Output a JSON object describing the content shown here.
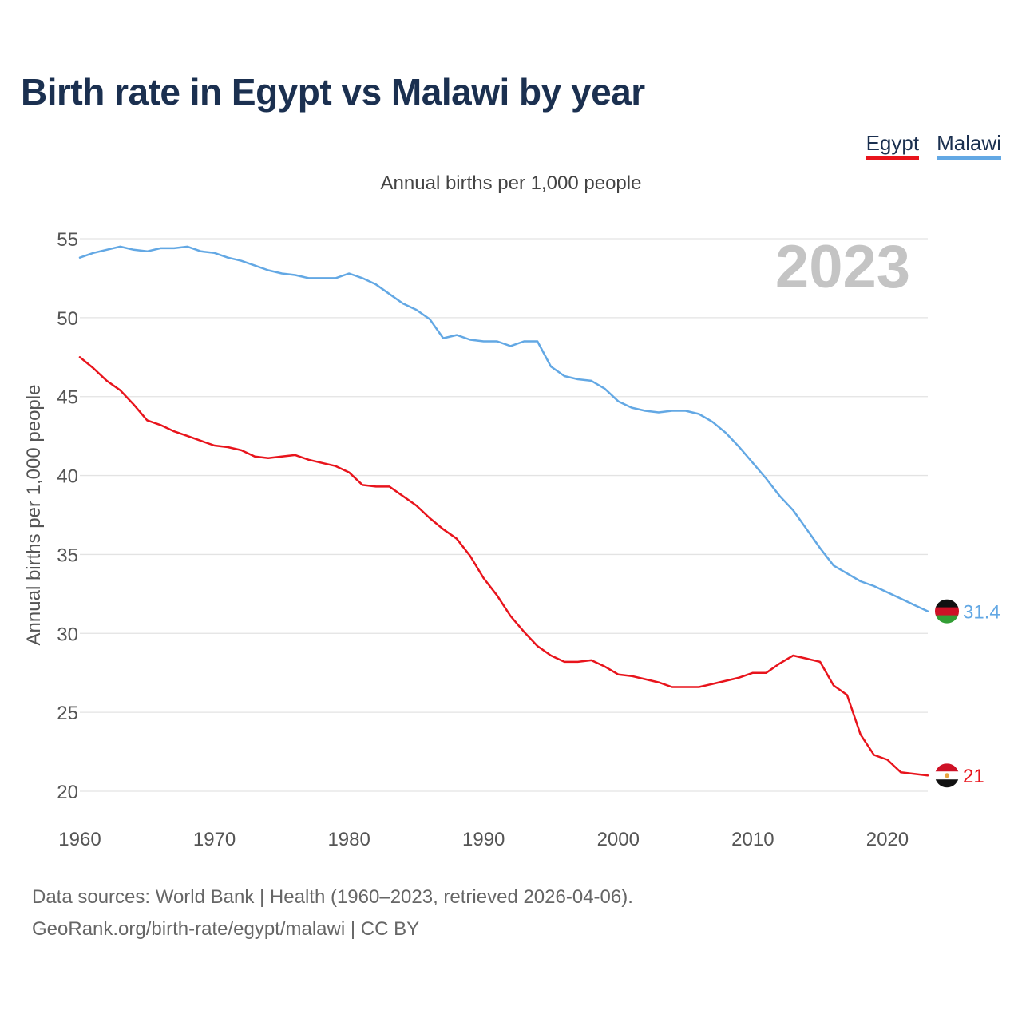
{
  "title": "Birth rate in Egypt vs Malawi by year",
  "subtitle": "Annual births per 1,000 people",
  "year_badge": "2023",
  "footer": {
    "line1": "Data sources: World Bank | Health (1960–2023, retrieved 2026-04-06).",
    "line2": "GeoRank.org/birth-rate/egypt/malawi | CC BY"
  },
  "chart_data": {
    "type": "line",
    "title": "Birth rate in Egypt vs Malawi by year",
    "xlabel": "",
    "ylabel": "Annual births per 1,000 people",
    "xlim": [
      1960,
      2023
    ],
    "ylim": [
      20,
      55
    ],
    "yticks": [
      "20",
      "25",
      "30",
      "35",
      "40",
      "45",
      "50",
      "55"
    ],
    "xticks": [
      "1960",
      "1970",
      "1980",
      "1990",
      "2000",
      "2010",
      "2020"
    ],
    "grid": true,
    "x": [
      1960,
      1961,
      1962,
      1963,
      1964,
      1965,
      1966,
      1967,
      1968,
      1969,
      1970,
      1971,
      1972,
      1973,
      1974,
      1975,
      1976,
      1977,
      1978,
      1979,
      1980,
      1981,
      1982,
      1983,
      1984,
      1985,
      1986,
      1987,
      1988,
      1989,
      1990,
      1991,
      1992,
      1993,
      1994,
      1995,
      1996,
      1997,
      1998,
      1999,
      2000,
      2001,
      2002,
      2003,
      2004,
      2005,
      2006,
      2007,
      2008,
      2009,
      2010,
      2011,
      2012,
      2013,
      2014,
      2015,
      2016,
      2017,
      2018,
      2019,
      2020,
      2021,
      2022,
      2023
    ],
    "series": [
      {
        "name": "Egypt",
        "color": "#e8141c",
        "end_label": "21",
        "values": [
          47.5,
          46.8,
          46.0,
          45.4,
          44.5,
          43.5,
          43.2,
          42.8,
          42.5,
          42.2,
          41.9,
          41.8,
          41.6,
          41.2,
          41.1,
          41.2,
          41.3,
          41.0,
          40.8,
          40.6,
          40.2,
          39.4,
          39.3,
          39.3,
          38.7,
          38.1,
          37.3,
          36.6,
          36.0,
          34.9,
          33.5,
          32.4,
          31.1,
          30.1,
          29.2,
          28.6,
          28.2,
          28.2,
          28.3,
          27.9,
          27.4,
          27.3,
          27.1,
          26.9,
          26.6,
          26.6,
          26.6,
          26.8,
          27.0,
          27.2,
          27.5,
          27.5,
          28.1,
          28.6,
          28.4,
          28.2,
          26.7,
          26.1,
          23.6,
          22.3,
          22.0,
          21.2,
          21.1,
          21.0
        ]
      },
      {
        "name": "Malawi",
        "color": "#63a8e4",
        "end_label": "31.4",
        "values": [
          53.8,
          54.1,
          54.3,
          54.5,
          54.3,
          54.2,
          54.4,
          54.4,
          54.5,
          54.2,
          54.1,
          53.8,
          53.6,
          53.3,
          53.0,
          52.8,
          52.7,
          52.5,
          52.5,
          52.5,
          52.8,
          52.5,
          52.1,
          51.5,
          50.9,
          50.5,
          49.9,
          48.7,
          48.9,
          48.6,
          48.5,
          48.5,
          48.2,
          48.5,
          48.5,
          46.9,
          46.3,
          46.1,
          46.0,
          45.5,
          44.7,
          44.3,
          44.1,
          44.0,
          44.1,
          44.1,
          43.9,
          43.4,
          42.7,
          41.8,
          40.8,
          39.8,
          38.7,
          37.8,
          36.6,
          35.4,
          34.3,
          33.8,
          33.3,
          33.0,
          32.6,
          32.2,
          31.8,
          31.4
        ]
      }
    ]
  }
}
